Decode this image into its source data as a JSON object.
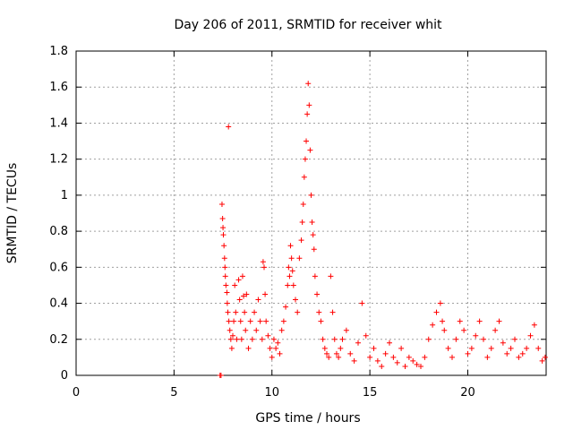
{
  "chart_data": {
    "type": "scatter",
    "title": "Day 206 of 2011, SRMTID for receiver whit",
    "xlabel": "GPS time / hours",
    "ylabel": "SRMTID / TECUs",
    "xlim": [
      0,
      24
    ],
    "ylim": [
      0,
      1.8
    ],
    "x_ticks": [
      0,
      5,
      10,
      15,
      20
    ],
    "x_tick_labels": [
      "0",
      "5",
      "10",
      "15",
      "20"
    ],
    "y_ticks": [
      0,
      0.2,
      0.4,
      0.6,
      0.8,
      1.0,
      1.2,
      1.4,
      1.6,
      1.8
    ],
    "y_tick_labels": [
      "0",
      "0.2",
      "0.4",
      "0.6",
      "0.8",
      "1",
      "1.2",
      "1.4",
      "1.6",
      "1.8"
    ],
    "grid": true,
    "marker": "+",
    "color": "#ff0000",
    "series": [
      {
        "points": [
          [
            7.35,
            0.0
          ],
          [
            7.4,
            0.0
          ],
          [
            7.45,
            0.95
          ],
          [
            7.48,
            0.87
          ],
          [
            7.5,
            0.82
          ],
          [
            7.52,
            0.78
          ],
          [
            7.55,
            0.72
          ],
          [
            7.58,
            0.65
          ],
          [
            7.6,
            0.6
          ],
          [
            7.62,
            0.55
          ],
          [
            7.65,
            0.5
          ],
          [
            7.7,
            0.46
          ],
          [
            7.72,
            0.4
          ],
          [
            7.75,
            0.35
          ],
          [
            7.78,
            1.38
          ],
          [
            7.8,
            0.3
          ],
          [
            7.85,
            0.25
          ],
          [
            7.9,
            0.2
          ],
          [
            7.95,
            0.15
          ],
          [
            8.0,
            0.22
          ],
          [
            8.05,
            0.3
          ],
          [
            8.1,
            0.5
          ],
          [
            8.15,
            0.35
          ],
          [
            8.2,
            0.2
          ],
          [
            8.3,
            0.53
          ],
          [
            8.35,
            0.42
          ],
          [
            8.4,
            0.3
          ],
          [
            8.45,
            0.2
          ],
          [
            8.5,
            0.55
          ],
          [
            8.55,
            0.44
          ],
          [
            8.6,
            0.35
          ],
          [
            8.65,
            0.25
          ],
          [
            8.7,
            0.45
          ],
          [
            8.8,
            0.15
          ],
          [
            8.9,
            0.3
          ],
          [
            9.0,
            0.2
          ],
          [
            9.1,
            0.35
          ],
          [
            9.2,
            0.25
          ],
          [
            9.3,
            0.42
          ],
          [
            9.4,
            0.3
          ],
          [
            9.5,
            0.2
          ],
          [
            9.55,
            0.63
          ],
          [
            9.6,
            0.6
          ],
          [
            9.65,
            0.45
          ],
          [
            9.7,
            0.3
          ],
          [
            9.8,
            0.22
          ],
          [
            9.9,
            0.15
          ],
          [
            10.0,
            0.1
          ],
          [
            10.1,
            0.2
          ],
          [
            10.2,
            0.15
          ],
          [
            10.3,
            0.18
          ],
          [
            10.4,
            0.12
          ],
          [
            10.5,
            0.25
          ],
          [
            10.6,
            0.3
          ],
          [
            10.7,
            0.38
          ],
          [
            10.8,
            0.5
          ],
          [
            10.85,
            0.6
          ],
          [
            10.9,
            0.55
          ],
          [
            10.95,
            0.72
          ],
          [
            11.0,
            0.65
          ],
          [
            11.05,
            0.58
          ],
          [
            11.1,
            0.5
          ],
          [
            11.2,
            0.42
          ],
          [
            11.3,
            0.35
          ],
          [
            11.4,
            0.65
          ],
          [
            11.5,
            0.75
          ],
          [
            11.55,
            0.85
          ],
          [
            11.6,
            0.95
          ],
          [
            11.65,
            1.1
          ],
          [
            11.7,
            1.2
          ],
          [
            11.75,
            1.3
          ],
          [
            11.8,
            1.45
          ],
          [
            11.85,
            1.62
          ],
          [
            11.9,
            1.5
          ],
          [
            11.95,
            1.25
          ],
          [
            12.0,
            1.0
          ],
          [
            12.05,
            0.85
          ],
          [
            12.1,
            0.78
          ],
          [
            12.15,
            0.7
          ],
          [
            12.2,
            0.55
          ],
          [
            12.3,
            0.45
          ],
          [
            12.4,
            0.35
          ],
          [
            12.5,
            0.3
          ],
          [
            12.6,
            0.2
          ],
          [
            12.7,
            0.15
          ],
          [
            12.8,
            0.12
          ],
          [
            12.9,
            0.1
          ],
          [
            13.0,
            0.55
          ],
          [
            13.1,
            0.35
          ],
          [
            13.2,
            0.2
          ],
          [
            13.3,
            0.12
          ],
          [
            13.4,
            0.1
          ],
          [
            13.5,
            0.15
          ],
          [
            13.6,
            0.2
          ],
          [
            13.8,
            0.25
          ],
          [
            14.0,
            0.12
          ],
          [
            14.2,
            0.08
          ],
          [
            14.4,
            0.18
          ],
          [
            14.6,
            0.4
          ],
          [
            14.8,
            0.22
          ],
          [
            15.0,
            0.1
          ],
          [
            15.2,
            0.15
          ],
          [
            15.4,
            0.08
          ],
          [
            15.6,
            0.05
          ],
          [
            15.8,
            0.12
          ],
          [
            16.0,
            0.18
          ],
          [
            16.2,
            0.1
          ],
          [
            16.4,
            0.07
          ],
          [
            16.6,
            0.15
          ],
          [
            16.8,
            0.05
          ],
          [
            17.0,
            0.1
          ],
          [
            17.2,
            0.08
          ],
          [
            17.4,
            0.06
          ],
          [
            17.6,
            0.05
          ],
          [
            17.8,
            0.1
          ],
          [
            18.0,
            0.2
          ],
          [
            18.2,
            0.28
          ],
          [
            18.4,
            0.35
          ],
          [
            18.6,
            0.4
          ],
          [
            18.7,
            0.3
          ],
          [
            18.8,
            0.25
          ],
          [
            19.0,
            0.15
          ],
          [
            19.2,
            0.1
          ],
          [
            19.4,
            0.2
          ],
          [
            19.6,
            0.3
          ],
          [
            19.8,
            0.25
          ],
          [
            20.0,
            0.12
          ],
          [
            20.2,
            0.15
          ],
          [
            20.4,
            0.22
          ],
          [
            20.6,
            0.3
          ],
          [
            20.8,
            0.2
          ],
          [
            21.0,
            0.1
          ],
          [
            21.2,
            0.15
          ],
          [
            21.4,
            0.25
          ],
          [
            21.6,
            0.3
          ],
          [
            21.8,
            0.18
          ],
          [
            22.0,
            0.12
          ],
          [
            22.2,
            0.15
          ],
          [
            22.4,
            0.2
          ],
          [
            22.6,
            0.1
          ],
          [
            22.8,
            0.12
          ],
          [
            23.0,
            0.15
          ],
          [
            23.2,
            0.22
          ],
          [
            23.4,
            0.28
          ],
          [
            23.6,
            0.15
          ],
          [
            23.8,
            0.08
          ],
          [
            23.95,
            0.1
          ]
        ]
      }
    ]
  }
}
